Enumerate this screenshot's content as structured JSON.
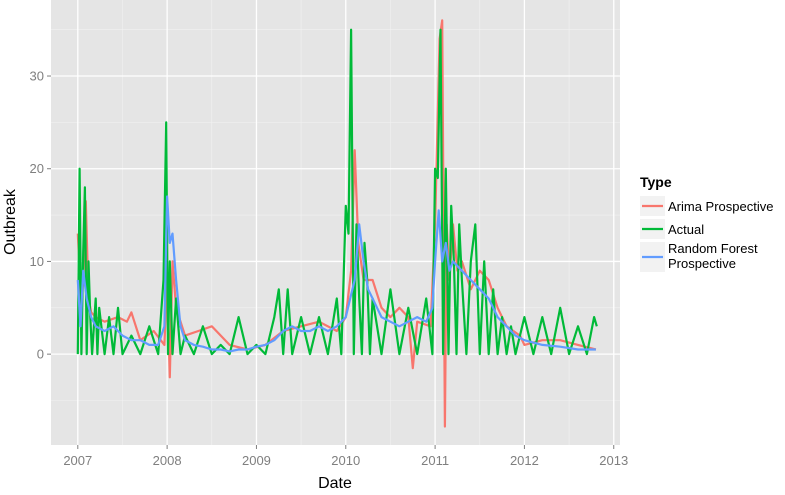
{
  "chart_data": {
    "type": "line",
    "xlabel": "Date",
    "ylabel": "Outbreak",
    "x_ticks": [
      "2007",
      "2008",
      "2009",
      "2010",
      "2011",
      "2012",
      "2013"
    ],
    "y_ticks": [
      "0",
      "10",
      "20",
      "30"
    ],
    "xlim": [
      2006.7,
      2013.07
    ],
    "ylim": [
      -9.8,
      38.2
    ],
    "grid": true,
    "legend_title": "Type",
    "legend_position": "right",
    "series": [
      {
        "name": "Arima Prospective",
        "color": "#F8766D",
        "x": [
          2007.0,
          2007.04,
          2007.06,
          2007.09,
          2007.12,
          2007.15,
          2007.2,
          2007.3,
          2007.45,
          2007.55,
          2007.6,
          2007.7,
          2007.85,
          2007.97,
          2008.0,
          2008.03,
          2008.06,
          2008.1,
          2008.2,
          2008.35,
          2008.5,
          2008.7,
          2008.9,
          2009.1,
          2009.3,
          2009.5,
          2009.7,
          2009.9,
          2010.0,
          2010.06,
          2010.1,
          2010.14,
          2010.2,
          2010.3,
          2010.4,
          2010.5,
          2010.6,
          2010.7,
          2010.75,
          2010.8,
          2010.95,
          2011.0,
          2011.05,
          2011.08,
          2011.11,
          2011.13,
          2011.16,
          2011.2,
          2011.25,
          2011.3,
          2011.4,
          2011.5,
          2011.6,
          2011.7,
          2011.8,
          2011.95,
          2012.0,
          2012.2,
          2012.4,
          2012.6,
          2012.8
        ],
        "y": [
          13,
          5,
          8,
          16.5,
          6,
          4.5,
          4,
          3.5,
          4,
          3.5,
          4.5,
          1.5,
          2.5,
          1,
          8,
          -2.5,
          10,
          5,
          2,
          2.5,
          3,
          1,
          0.5,
          1,
          2.5,
          3,
          3.5,
          2.5,
          4,
          9,
          22,
          12,
          8,
          8,
          5,
          4,
          5,
          4,
          -1.5,
          3.5,
          3,
          14,
          34,
          36,
          -7.8,
          14,
          8,
          14,
          9,
          10,
          7,
          9,
          8,
          5,
          3,
          2,
          1,
          1.5,
          1.5,
          1,
          0.5
        ]
      },
      {
        "name": "Actual",
        "color": "#00BA38",
        "x": [
          2007.0,
          2007.02,
          2007.04,
          2007.06,
          2007.08,
          2007.1,
          2007.12,
          2007.14,
          2007.16,
          2007.18,
          2007.2,
          2007.22,
          2007.24,
          2007.3,
          2007.35,
          2007.4,
          2007.45,
          2007.5,
          2007.6,
          2007.7,
          2007.8,
          2007.9,
          2007.96,
          2007.99,
          2008.01,
          2008.03,
          2008.06,
          2008.1,
          2008.15,
          2008.2,
          2008.3,
          2008.4,
          2008.5,
          2008.6,
          2008.7,
          2008.8,
          2008.9,
          2009.0,
          2009.1,
          2009.2,
          2009.25,
          2009.3,
          2009.35,
          2009.4,
          2009.5,
          2009.6,
          2009.7,
          2009.8,
          2009.9,
          2009.95,
          2010.0,
          2010.03,
          2010.06,
          2010.09,
          2010.12,
          2010.15,
          2010.18,
          2010.21,
          2010.24,
          2010.27,
          2010.3,
          2010.4,
          2010.5,
          2010.6,
          2010.7,
          2010.8,
          2010.9,
          2010.97,
          2011.0,
          2011.03,
          2011.06,
          2011.09,
          2011.12,
          2011.15,
          2011.18,
          2011.21,
          2011.24,
          2011.27,
          2011.3,
          2011.35,
          2011.4,
          2011.45,
          2011.5,
          2011.55,
          2011.6,
          2011.65,
          2011.7,
          2011.75,
          2011.8,
          2011.85,
          2011.9,
          2012.0,
          2012.1,
          2012.2,
          2012.3,
          2012.4,
          2012.5,
          2012.6,
          2012.7,
          2012.78,
          2012.81
        ],
        "y": [
          0,
          20,
          0,
          11,
          18,
          0,
          10,
          4,
          0,
          3,
          6,
          0,
          5,
          0,
          4,
          0,
          5,
          0,
          2,
          0,
          3,
          0,
          8,
          25,
          0,
          10,
          0,
          6,
          0,
          2,
          0,
          3,
          0,
          1,
          0,
          4,
          0,
          1,
          0,
          4,
          7,
          0,
          7,
          0,
          4,
          0,
          4,
          0,
          6,
          0,
          16,
          13,
          35,
          0,
          14,
          6,
          0,
          12,
          8,
          0,
          6,
          0,
          7,
          0,
          5,
          0,
          6,
          0,
          20,
          19,
          35,
          0,
          20,
          0,
          16,
          10,
          0,
          14,
          8,
          0,
          10,
          14,
          0,
          10,
          0,
          7,
          0,
          4,
          0,
          3,
          0,
          4,
          0,
          4,
          0,
          5,
          0,
          3,
          0,
          4,
          3
        ]
      },
      {
        "name": "Random Forest Prospective",
        "color": "#619CFF",
        "x": [
          2007.0,
          2007.03,
          2007.06,
          2007.1,
          2007.15,
          2007.2,
          2007.3,
          2007.4,
          2007.5,
          2007.6,
          2007.7,
          2007.8,
          2007.9,
          2007.97,
          2008.0,
          2008.03,
          2008.06,
          2008.1,
          2008.15,
          2008.2,
          2008.3,
          2008.4,
          2008.5,
          2008.6,
          2008.7,
          2008.8,
          2008.9,
          2009.0,
          2009.1,
          2009.2,
          2009.3,
          2009.4,
          2009.5,
          2009.6,
          2009.7,
          2009.8,
          2009.9,
          2010.0,
          2010.05,
          2010.1,
          2010.15,
          2010.2,
          2010.25,
          2010.3,
          2010.4,
          2010.5,
          2010.6,
          2010.7,
          2010.8,
          2010.9,
          2010.97,
          2011.0,
          2011.04,
          2011.08,
          2011.12,
          2011.16,
          2011.2,
          2011.3,
          2011.4,
          2011.5,
          2011.6,
          2011.7,
          2011.8,
          2011.9,
          2012.0,
          2012.2,
          2012.4,
          2012.6,
          2012.8
        ],
        "y": [
          8,
          3,
          9,
          6,
          4,
          3,
          2.5,
          3,
          2,
          1.5,
          1.5,
          1,
          1,
          3,
          17,
          12,
          13,
          8,
          3,
          1.5,
          1,
          0.8,
          0.5,
          0.5,
          0.3,
          0.5,
          0.5,
          0.8,
          1,
          1.5,
          2.5,
          3,
          2.5,
          2.5,
          3,
          2.5,
          3,
          4,
          6,
          8,
          14,
          10,
          7,
          6,
          4,
          3.5,
          3,
          3.5,
          4,
          3.5,
          5,
          10,
          15.5,
          10,
          12,
          9,
          10,
          9,
          8,
          7,
          6,
          4,
          3,
          2,
          1.5,
          1,
          0.8,
          0.5,
          0.5
        ]
      }
    ]
  }
}
